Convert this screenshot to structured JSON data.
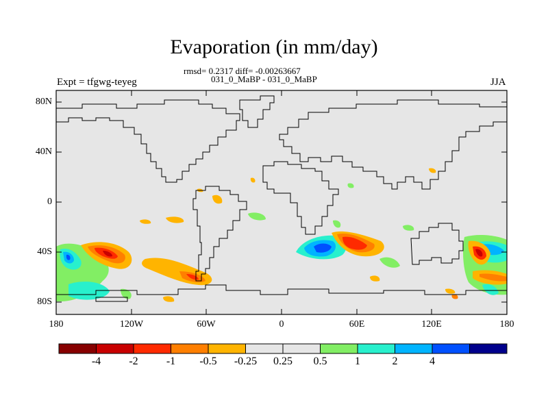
{
  "figure": {
    "title": "Evaporation (in mm/day)",
    "stats": "rmsd= 0.2317 diff= -0.00263667",
    "subtitle": "031_0_MaBP - 031_0_MaBP",
    "left_label": "Expt = tfgwg-teyeg",
    "right_label": "JJA"
  },
  "map": {
    "projection": "cylindrical equidistant",
    "lon_range": [
      -180,
      180
    ],
    "lat_range": [
      -90,
      90
    ],
    "background_color": "#e6e6e6",
    "y_ticks": [
      {
        "lat": 80,
        "label": "80N"
      },
      {
        "lat": 40,
        "label": "40N"
      },
      {
        "lat": 0,
        "label": "0"
      },
      {
        "lat": -40,
        "label": "40S"
      },
      {
        "lat": -80,
        "label": "80S"
      }
    ],
    "x_ticks": [
      {
        "lon": -180,
        "label": "180"
      },
      {
        "lon": -120,
        "label": "120W"
      },
      {
        "lon": -60,
        "label": "60W"
      },
      {
        "lon": 0,
        "label": "0"
      },
      {
        "lon": 60,
        "label": "60E"
      },
      {
        "lon": 120,
        "label": "120E"
      },
      {
        "lon": 180,
        "label": "180"
      }
    ]
  },
  "colorbar": {
    "colors": [
      "#870000",
      "#c80000",
      "#ff2a00",
      "#ff7f00",
      "#ffb400",
      "#e6e6e6",
      "#e6e6e6",
      "#82ee64",
      "#28f0cd",
      "#00b4ff",
      "#0050ff",
      "#00008c"
    ],
    "labels": [
      "-4",
      "-2",
      "-1",
      "-0.5",
      "-0.25",
      "0.25",
      "0.5",
      "1",
      "2",
      "4"
    ]
  }
}
